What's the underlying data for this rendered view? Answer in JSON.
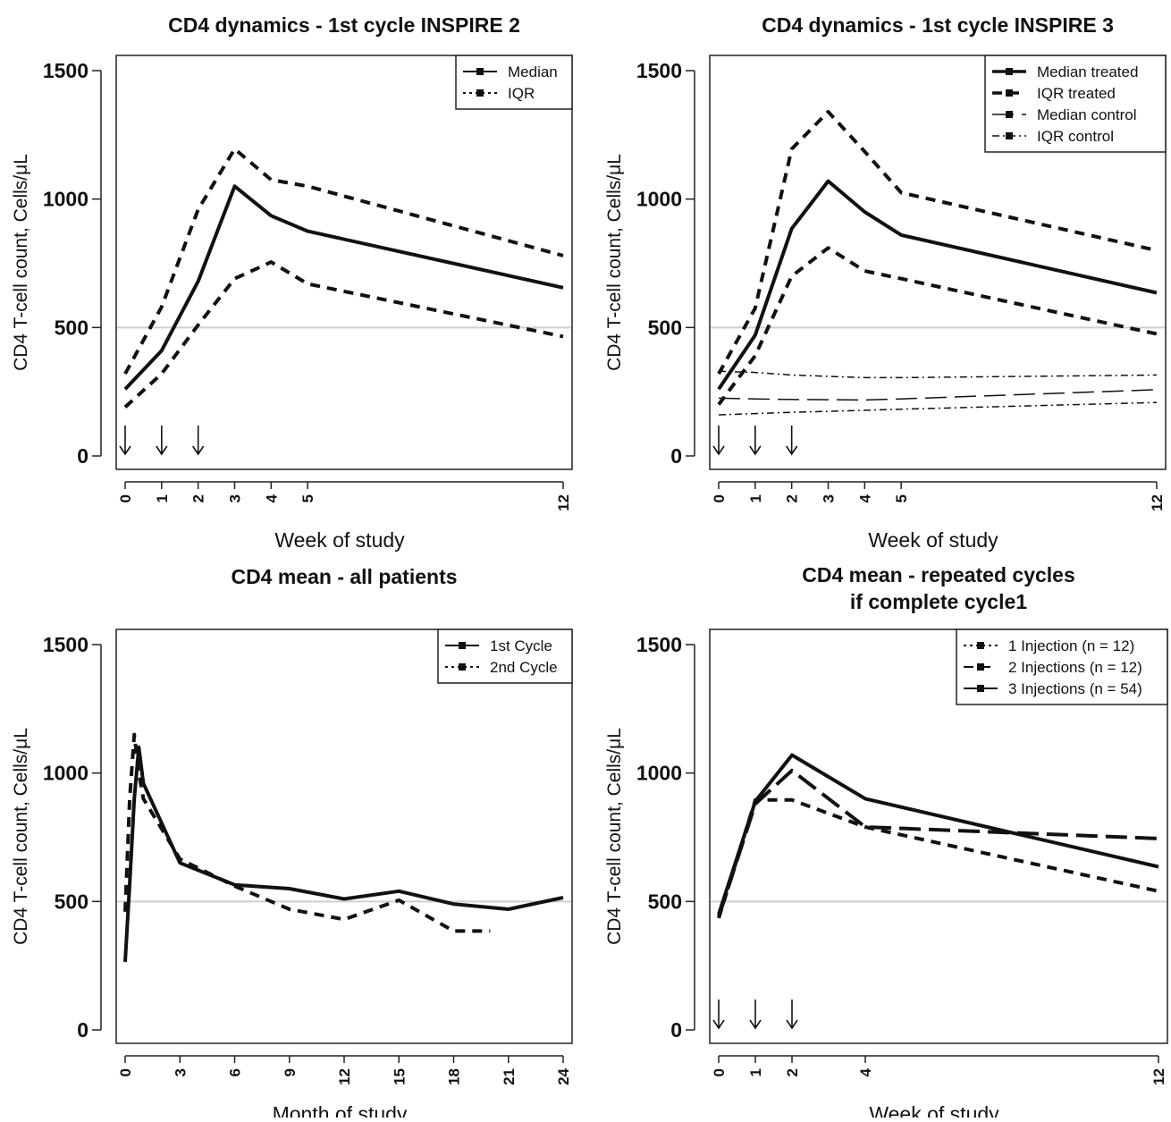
{
  "chart_data": [
    {
      "type": "line",
      "title": "CD4 dynamics - 1st cycle INSPIRE 2",
      "subtitle": "",
      "xlabel": "Week of study",
      "ylabel": "CD4 T-cell count, Cells/μL",
      "xlim": [
        0,
        12
      ],
      "ylim": [
        0,
        1500
      ],
      "xticks": [
        0,
        1,
        2,
        3,
        4,
        5,
        12
      ],
      "yticks": [
        0,
        500,
        1000,
        1500
      ],
      "reference_line_y": 500,
      "arrows_at_x": [
        0,
        1,
        2
      ],
      "legend_position": "top-right",
      "legend": [
        {
          "label": "Median",
          "style": "solid",
          "width": 2
        },
        {
          "label": "IQR",
          "style": "dotted",
          "width": 2
        }
      ],
      "series": [
        {
          "name": "Median",
          "style": "solid",
          "width": 4,
          "x": [
            0,
            1,
            2,
            3,
            4,
            5,
            12
          ],
          "values": [
            260,
            410,
            680,
            1050,
            935,
            875,
            655
          ]
        },
        {
          "name": "IQR",
          "style": "dashed",
          "width": 4,
          "x": [
            0,
            1,
            2,
            3,
            4,
            5,
            12
          ],
          "values": [
            320,
            580,
            960,
            1195,
            1075,
            1050,
            780
          ]
        },
        {
          "name": "IQR",
          "style": "dashed",
          "width": 4,
          "x": [
            0,
            1,
            2,
            3,
            4,
            5,
            12
          ],
          "values": [
            190,
            320,
            510,
            690,
            755,
            670,
            465
          ]
        }
      ]
    },
    {
      "type": "line",
      "title": "CD4 dynamics - 1st cycle INSPIRE 3",
      "subtitle": "",
      "xlabel": "Week of study",
      "ylabel": "CD4 T-cell count, Cells/μL",
      "xlim": [
        0,
        12
      ],
      "ylim": [
        0,
        1500
      ],
      "xticks": [
        0,
        1,
        2,
        3,
        4,
        5,
        12
      ],
      "yticks": [
        0,
        500,
        1000,
        1500
      ],
      "reference_line_y": 500,
      "arrows_at_x": [
        0,
        1,
        2
      ],
      "legend_position": "top-right",
      "legend": [
        {
          "label": "Median treated",
          "style": "solid",
          "width": 3.5
        },
        {
          "label": "IQR treated",
          "style": "dashed",
          "width": 3.5
        },
        {
          "label": "Median control",
          "style": "longdash",
          "width": 1.5
        },
        {
          "label": "IQR control",
          "style": "dotdash",
          "width": 1.5
        }
      ],
      "series": [
        {
          "name": "Median treated",
          "style": "solid",
          "width": 4,
          "x": [
            0,
            1,
            2,
            3,
            4,
            5,
            12
          ],
          "values": [
            260,
            470,
            885,
            1070,
            950,
            860,
            635
          ]
        },
        {
          "name": "IQR treated",
          "style": "dashed",
          "width": 4,
          "x": [
            0,
            1,
            2,
            3,
            4,
            5,
            12
          ],
          "values": [
            320,
            575,
            1195,
            1340,
            1185,
            1025,
            800
          ]
        },
        {
          "name": "IQR treated",
          "style": "dashed",
          "width": 4,
          "x": [
            0,
            1,
            2,
            3,
            4,
            5,
            12
          ],
          "values": [
            200,
            390,
            700,
            810,
            720,
            690,
            475
          ]
        },
        {
          "name": "Median control",
          "style": "longdash",
          "width": 1.5,
          "x": [
            0,
            1,
            2,
            4,
            5,
            12
          ],
          "values": [
            225,
            222,
            220,
            218,
            222,
            258
          ]
        },
        {
          "name": "IQR control",
          "style": "dotdash",
          "width": 1.5,
          "x": [
            0,
            1,
            2,
            4,
            5,
            12
          ],
          "values": [
            330,
            325,
            315,
            305,
            305,
            315
          ]
        },
        {
          "name": "IQR control",
          "style": "dotdash",
          "width": 1.5,
          "x": [
            0,
            1,
            2,
            4,
            5,
            12
          ],
          "values": [
            160,
            165,
            170,
            178,
            182,
            208
          ]
        }
      ]
    },
    {
      "type": "line",
      "title": "CD4 mean - all patients",
      "subtitle": "",
      "xlabel": "Month of study",
      "ylabel": "CD4 T-cell count, Cells/μL",
      "xlim": [
        0,
        24
      ],
      "ylim": [
        0,
        1500
      ],
      "xticks": [
        0,
        3,
        6,
        9,
        12,
        15,
        18,
        21,
        24
      ],
      "yticks": [
        0,
        500,
        1000,
        1500
      ],
      "reference_line_y": 500,
      "arrows_at_x": [],
      "legend_position": "top-right",
      "legend": [
        {
          "label": "1st Cycle",
          "style": "solid",
          "width": 2
        },
        {
          "label": "2nd Cycle",
          "style": "dotted",
          "width": 2
        }
      ],
      "series": [
        {
          "name": "1st Cycle",
          "style": "solid",
          "width": 4,
          "x": [
            0,
            0.25,
            0.5,
            0.75,
            1,
            3,
            6,
            9,
            12,
            15,
            18,
            21,
            24
          ],
          "values": [
            265,
            570,
            900,
            1100,
            960,
            650,
            565,
            550,
            510,
            540,
            490,
            470,
            515
          ]
        },
        {
          "name": "2nd Cycle",
          "style": "dashed",
          "width": 4,
          "x": [
            0,
            0.25,
            0.5,
            0.75,
            1,
            3,
            6,
            9,
            12,
            15,
            18,
            20
          ],
          "values": [
            460,
            900,
            1150,
            1000,
            900,
            665,
            560,
            470,
            430,
            505,
            385,
            385
          ]
        }
      ]
    },
    {
      "type": "line",
      "title": "CD4 mean - repeated cycles",
      "subtitle": "if complete cycle1",
      "xlabel": "Week of study",
      "ylabel": "CD4 T-cell count, Cells/μL",
      "xlim": [
        0,
        12
      ],
      "ylim": [
        0,
        1500
      ],
      "xticks": [
        0,
        1,
        2,
        4,
        12
      ],
      "yticks": [
        0,
        500,
        1000,
        1500
      ],
      "reference_line_y": 500,
      "arrows_at_x": [
        0,
        1,
        2
      ],
      "legend_position": "top-right",
      "legend": [
        {
          "label": "1 Injection (n = 12)",
          "style": "dotted",
          "width": 2
        },
        {
          "label": "2 Injections (n = 12)",
          "style": "dashed",
          "width": 2
        },
        {
          "label": "3 Injections (n = 54)",
          "style": "solid",
          "width": 2
        }
      ],
      "series": [
        {
          "name": "1 Injection (n = 12)",
          "style": "dashed",
          "width": 4,
          "x": [
            0,
            1,
            2,
            4,
            12
          ],
          "values": [
            435,
            895,
            895,
            790,
            540
          ]
        },
        {
          "name": "2 Injections (n = 12)",
          "style": "longdash",
          "width": 4,
          "x": [
            0,
            1,
            2,
            4,
            12
          ],
          "values": [
            440,
            880,
            1010,
            790,
            745
          ]
        },
        {
          "name": "3 Injections (n = 54)",
          "style": "solid",
          "width": 4,
          "x": [
            0,
            1,
            2,
            4,
            12
          ],
          "values": [
            450,
            890,
            1070,
            900,
            635
          ]
        }
      ]
    }
  ]
}
